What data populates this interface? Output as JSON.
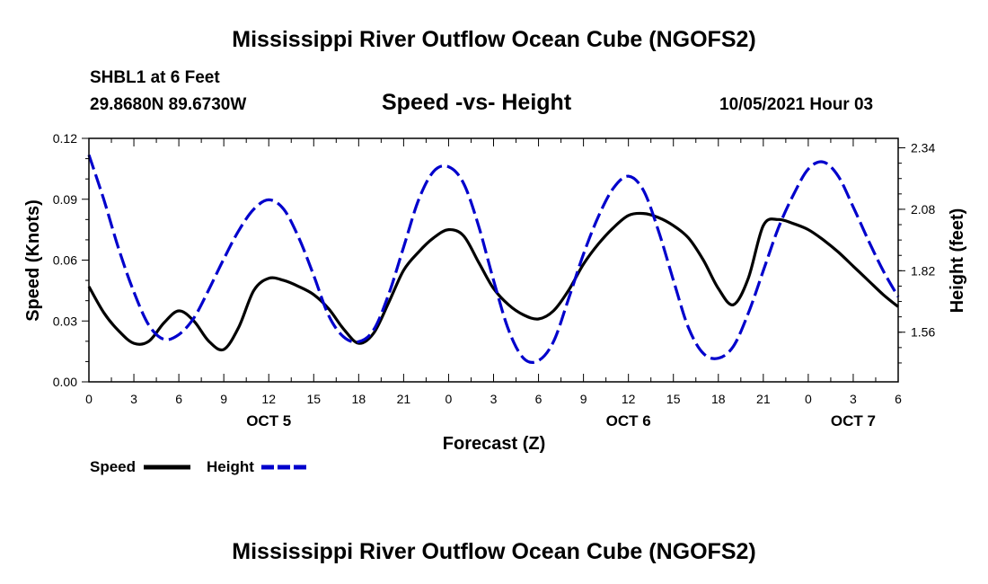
{
  "header": {
    "title": "Mississippi River Outflow Ocean Cube (NGOFS2)",
    "station": "SHBL1 at 6 Feet",
    "coords": "29.8680N  89.6730W",
    "subtitle": "Speed -vs- Height",
    "datetime": "10/05/2021 Hour 03"
  },
  "footer": {
    "title": "Mississippi River Outflow Ocean Cube (NGOFS2)"
  },
  "legend": {
    "speed": "Speed",
    "height": "Height"
  },
  "colors": {
    "speed": "#000000",
    "height": "#0000cc"
  },
  "chart_data": {
    "type": "line",
    "title": "Speed -vs- Height",
    "xlabel": "Forecast (Z)",
    "ylabel": "Speed (Knots)",
    "y2label": "Height (feet)",
    "xlim": [
      0,
      54
    ],
    "ylim": [
      0,
      0.12
    ],
    "y2lim": [
      1.35,
      2.38
    ],
    "x_ticks": [
      0,
      3,
      6,
      9,
      12,
      15,
      18,
      21,
      24,
      27,
      30,
      33,
      36,
      39,
      42,
      45,
      48,
      51,
      54
    ],
    "x_tick_labels": [
      "0",
      "3",
      "6",
      "9",
      "12",
      "15",
      "18",
      "21",
      "0",
      "3",
      "6",
      "9",
      "12",
      "15",
      "18",
      "21",
      "0",
      "3",
      "6"
    ],
    "date_labels": [
      {
        "x": 12,
        "label": "OCT 5"
      },
      {
        "x": 36,
        "label": "OCT 6"
      },
      {
        "x": 51,
        "label": "OCT 7"
      }
    ],
    "y_ticks": [
      0,
      0.03,
      0.06,
      0.09,
      0.12
    ],
    "y_tick_labels": [
      "0.00",
      "0.03",
      "0.06",
      "0.09",
      "0.12"
    ],
    "y2_ticks": [
      1.56,
      1.82,
      2.08,
      2.34
    ],
    "y2_tick_labels": [
      "1.56",
      "1.82",
      "2.08",
      "2.34"
    ],
    "series": [
      {
        "name": "Speed",
        "axis": "left",
        "style": "solid",
        "x": [
          0,
          1,
          2,
          3,
          4,
          5,
          6,
          7,
          8,
          9,
          10,
          11,
          12,
          13,
          14,
          15,
          16,
          17,
          18,
          19,
          20,
          21,
          22,
          23,
          24,
          25,
          26,
          27,
          28,
          29,
          30,
          31,
          32,
          33,
          34,
          35,
          36,
          37,
          38,
          39,
          40,
          41,
          42,
          43,
          44,
          45,
          46,
          47,
          48,
          49,
          50,
          51,
          52,
          53,
          54
        ],
        "values": [
          0.047,
          0.034,
          0.025,
          0.019,
          0.02,
          0.029,
          0.035,
          0.03,
          0.02,
          0.016,
          0.027,
          0.045,
          0.051,
          0.05,
          0.047,
          0.043,
          0.036,
          0.026,
          0.019,
          0.024,
          0.039,
          0.055,
          0.064,
          0.071,
          0.075,
          0.072,
          0.059,
          0.046,
          0.038,
          0.033,
          0.031,
          0.035,
          0.045,
          0.058,
          0.068,
          0.076,
          0.082,
          0.083,
          0.081,
          0.077,
          0.071,
          0.06,
          0.046,
          0.038,
          0.051,
          0.077,
          0.08,
          0.078,
          0.075,
          0.07,
          0.064,
          0.057,
          0.05,
          0.043,
          0.037
        ]
      },
      {
        "name": "Height",
        "axis": "right",
        "style": "dashed",
        "x": [
          0,
          1,
          2,
          3,
          4,
          5,
          6,
          7,
          8,
          9,
          10,
          11,
          12,
          13,
          14,
          15,
          16,
          17,
          18,
          19,
          20,
          21,
          22,
          23,
          24,
          25,
          26,
          27,
          28,
          29,
          30,
          31,
          32,
          33,
          34,
          35,
          36,
          37,
          38,
          39,
          40,
          41,
          42,
          43,
          44,
          45,
          46,
          47,
          48,
          49,
          50,
          51,
          52,
          53,
          54
        ],
        "values": [
          2.31,
          2.12,
          1.91,
          1.73,
          1.59,
          1.53,
          1.55,
          1.62,
          1.74,
          1.87,
          1.99,
          2.08,
          2.12,
          2.08,
          1.96,
          1.8,
          1.63,
          1.54,
          1.52,
          1.57,
          1.72,
          1.92,
          2.12,
          2.24,
          2.26,
          2.19,
          2.01,
          1.78,
          1.57,
          1.45,
          1.44,
          1.52,
          1.7,
          1.89,
          2.05,
          2.17,
          2.22,
          2.16,
          1.99,
          1.78,
          1.58,
          1.47,
          1.45,
          1.5,
          1.64,
          1.82,
          2.0,
          2.14,
          2.25,
          2.28,
          2.22,
          2.09,
          1.95,
          1.82,
          1.71
        ]
      }
    ]
  }
}
